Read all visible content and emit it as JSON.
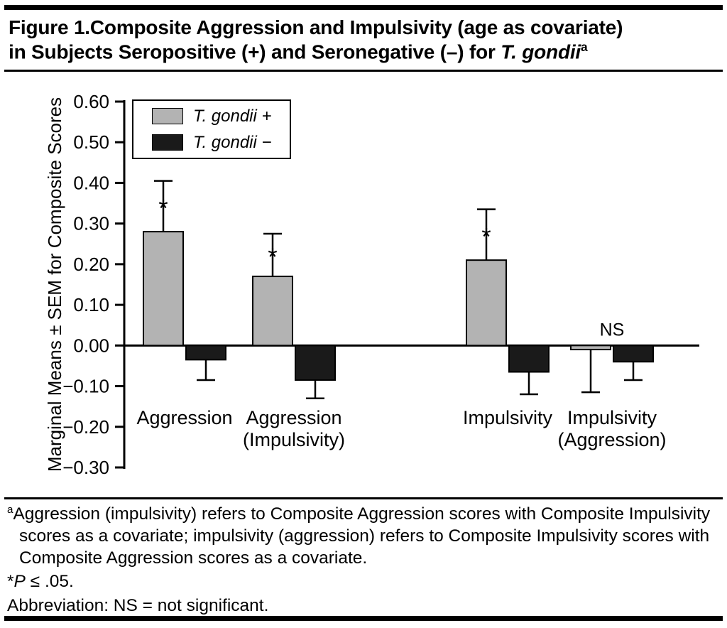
{
  "title": {
    "line1": "Figure 1.Composite Aggression and Impulsivity (age as covariate)",
    "line2_prefix": "in Subjects Seropositive (+) and Seronegative (–) for ",
    "line2_italic": "T. gondii",
    "line2_superscript": "a"
  },
  "legend": {
    "items": [
      {
        "label": "T. gondii +",
        "color": "#b3b3b3"
      },
      {
        "label": "T. gondii −",
        "color": "#1a1a1a"
      }
    ]
  },
  "chart_data": {
    "type": "bar",
    "title": "Composite Aggression and Impulsivity (age as covariate) in Subjects Seropositive (+) and Seronegative (−) for T. gondii",
    "ylabel": "Marginal Means ± SEM for Composite Scores",
    "xlabel": "",
    "ylim": [
      -0.3,
      0.6
    ],
    "yticks": [
      0.6,
      0.5,
      0.4,
      0.3,
      0.2,
      0.1,
      0.0,
      -0.1,
      -0.2,
      -0.3
    ],
    "grid": "off",
    "legend_position": "upper-left-inside",
    "categories": [
      "Aggression",
      "Aggression\n(Impulsivity)",
      "Impulsivity",
      "Impulsivity\n(Aggression)"
    ],
    "series": [
      {
        "name": "T. gondii +",
        "color": "#b3b3b3",
        "values": [
          0.28,
          0.17,
          0.21,
          -0.01
        ],
        "sem": [
          0.125,
          0.105,
          0.125,
          0.105
        ]
      },
      {
        "name": "T. gondii −",
        "color": "#1a1a1a",
        "values": [
          -0.035,
          -0.085,
          -0.065,
          -0.04
        ],
        "sem": [
          0.05,
          0.045,
          0.055,
          0.045
        ]
      }
    ],
    "significance": [
      "*",
      "*",
      "*",
      "NS"
    ]
  },
  "footnotes": {
    "a_sup": "a",
    "a_text": "Aggression (impulsivity) refers to Composite Aggression scores with Composite Impulsivity scores as a covariate; impulsivity (aggression) refers to Composite Impulsivity scores with Composite Aggression scores as a covariate.",
    "p_star": "*",
    "p_italic": "P",
    "p_rest": " ≤ .05.",
    "abbreviation": "Abbreviation: NS = not significant."
  }
}
